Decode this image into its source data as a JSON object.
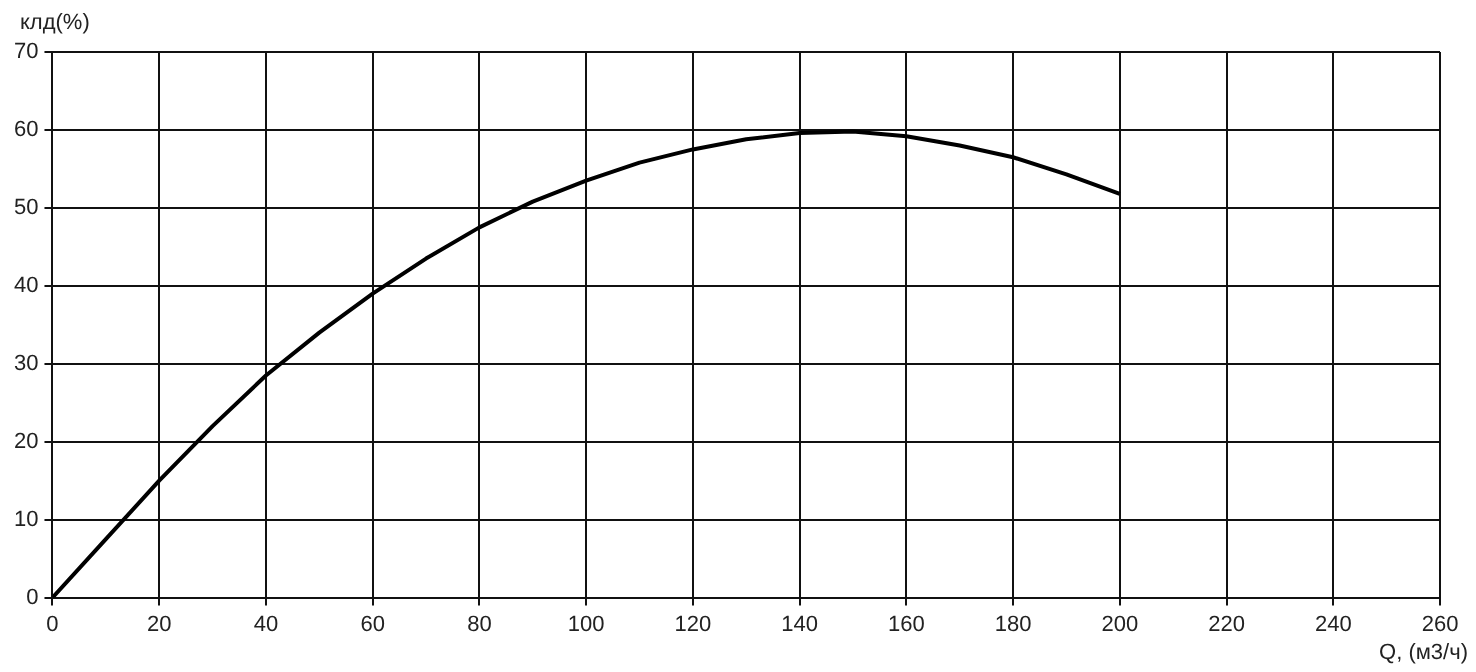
{
  "chart_data": {
    "type": "line",
    "xlabel": "Q, (м3/ч)",
    "ylabel": "клд(%)",
    "x": [
      0,
      10,
      20,
      30,
      40,
      50,
      60,
      70,
      80,
      90,
      100,
      110,
      120,
      130,
      140,
      150,
      160,
      170,
      180,
      190,
      200
    ],
    "series": [
      {
        "color": "#000000",
        "values": [
          0,
          7.5,
          15,
          22,
          28.5,
          34,
          39,
          43.5,
          47.5,
          50.8,
          53.5,
          55.8,
          57.5,
          58.8,
          59.6,
          59.8,
          59.2,
          58,
          56.5,
          54.3,
          51.8
        ]
      }
    ],
    "xlim": [
      0,
      260
    ],
    "xticks": [
      0,
      20,
      40,
      60,
      80,
      100,
      120,
      140,
      160,
      180,
      200,
      220,
      240,
      260
    ],
    "ylim": [
      0,
      70
    ],
    "yticks": [
      0,
      10,
      20,
      30,
      40,
      50,
      60,
      70
    ],
    "grid": true,
    "legend": false,
    "marker": "none",
    "line_style": "solid"
  }
}
